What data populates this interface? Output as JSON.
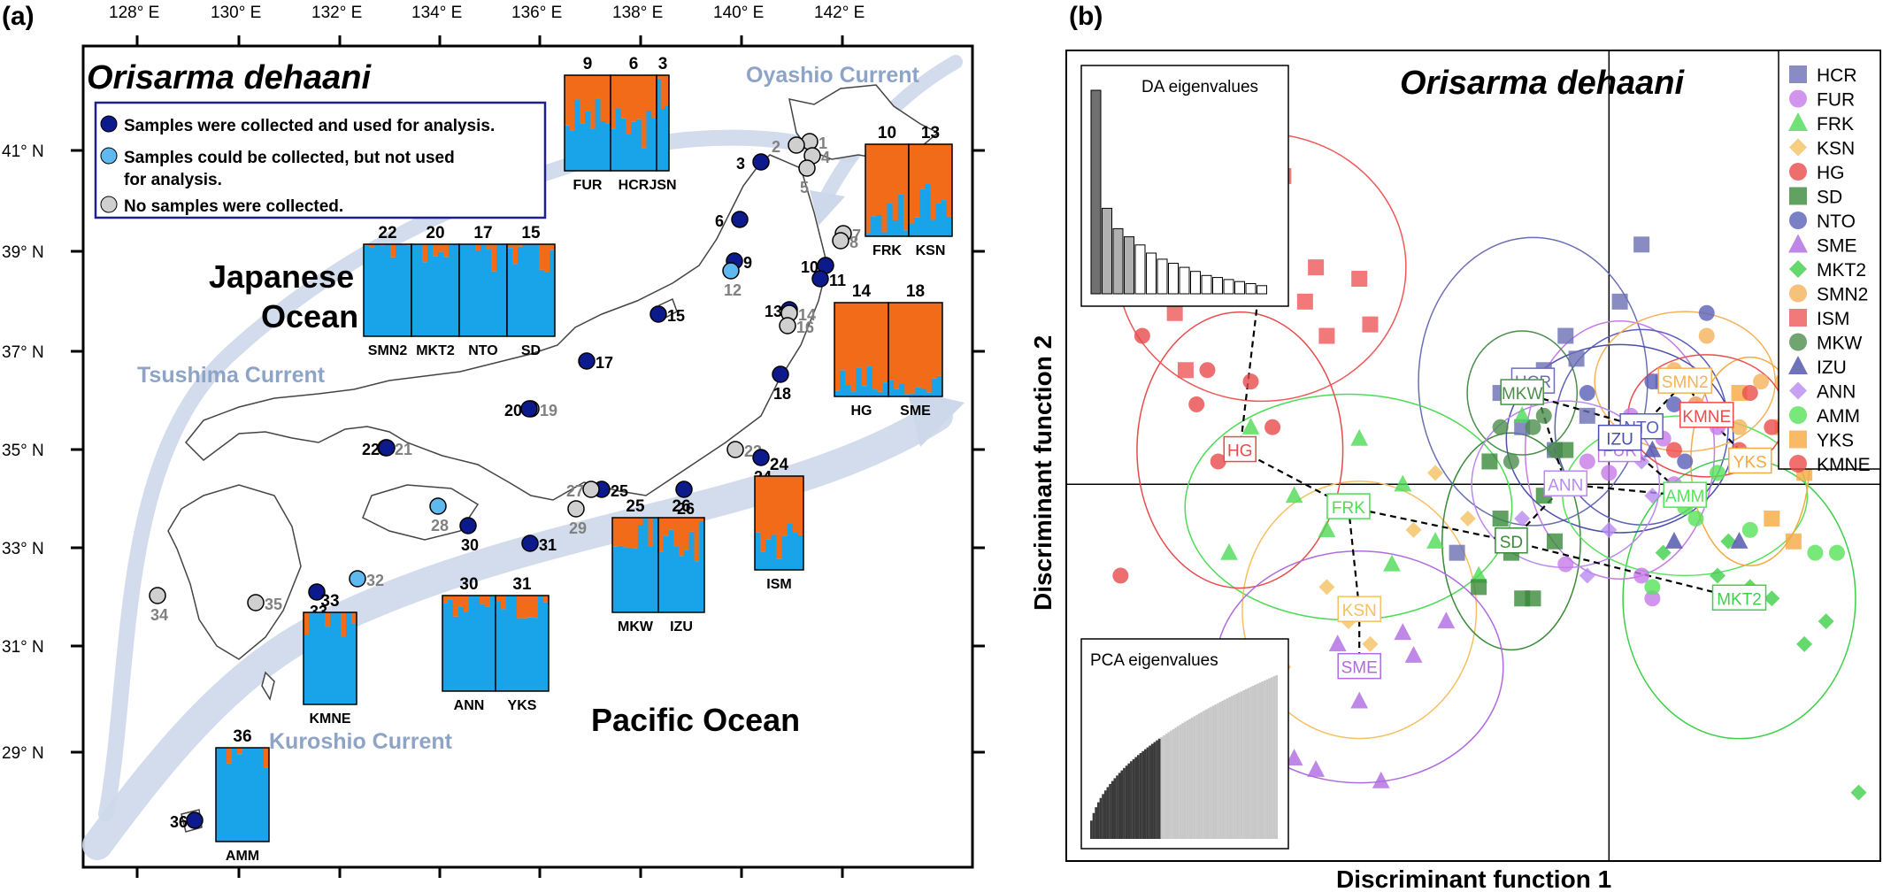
{
  "panels": {
    "a": "(a)",
    "b": "(b)"
  },
  "species": "Orisarma dehaani",
  "colors": {
    "ancestry_a": "#f26b18",
    "ancestry_b": "#19a3e8",
    "current": "#c5d3e8",
    "site_used": "#0d1a8c",
    "site_unused": "#5fb8ee",
    "site_none": "#cfcfcf"
  },
  "map": {
    "lon_ticks": [
      "128° E",
      "130° E",
      "132° E",
      "134° E",
      "136° E",
      "138° E",
      "140° E",
      "142° E"
    ],
    "lat_ticks": [
      "41° N",
      "39° N",
      "37° N",
      "35° N",
      "33° N",
      "31° N",
      "29° N"
    ],
    "legend": [
      {
        "text": "Samples were collected and used for analysis.",
        "kind": "used"
      },
      {
        "text": "Samples could be collected, but not used",
        "text2": "for analysis.",
        "kind": "unused"
      },
      {
        "text": "No samples were collected.",
        "kind": "none"
      }
    ],
    "seas": [
      {
        "name": "Japanese",
        "name2": "Ocean"
      },
      {
        "name": "Pacific Ocean"
      }
    ],
    "currents": [
      "Oyashio Current",
      "Tsushima Current",
      "Kuroshio Current"
    ],
    "sites": [
      {
        "n": "1",
        "kind": "none"
      },
      {
        "n": "2",
        "kind": "none"
      },
      {
        "n": "3",
        "kind": "used"
      },
      {
        "n": "4",
        "kind": "none"
      },
      {
        "n": "5",
        "kind": "none"
      },
      {
        "n": "6",
        "kind": "used"
      },
      {
        "n": "7",
        "kind": "none"
      },
      {
        "n": "8",
        "kind": "none"
      },
      {
        "n": "9",
        "kind": "used"
      },
      {
        "n": "10",
        "kind": "used"
      },
      {
        "n": "11",
        "kind": "used"
      },
      {
        "n": "12",
        "kind": "unused"
      },
      {
        "n": "13",
        "kind": "used"
      },
      {
        "n": "14",
        "kind": "none"
      },
      {
        "n": "15",
        "kind": "used"
      },
      {
        "n": "16",
        "kind": "none"
      },
      {
        "n": "17",
        "kind": "used"
      },
      {
        "n": "18",
        "kind": "used"
      },
      {
        "n": "19",
        "kind": "none"
      },
      {
        "n": "20",
        "kind": "used"
      },
      {
        "n": "21",
        "kind": "none"
      },
      {
        "n": "22",
        "kind": "used"
      },
      {
        "n": "23",
        "kind": "none"
      },
      {
        "n": "24",
        "kind": "used"
      },
      {
        "n": "25",
        "kind": "used"
      },
      {
        "n": "26",
        "kind": "used"
      },
      {
        "n": "27",
        "kind": "none"
      },
      {
        "n": "28",
        "kind": "unused"
      },
      {
        "n": "29",
        "kind": "none"
      },
      {
        "n": "30",
        "kind": "used"
      },
      {
        "n": "31",
        "kind": "used"
      },
      {
        "n": "32",
        "kind": "unused"
      },
      {
        "n": "33",
        "kind": "used"
      },
      {
        "n": "34",
        "kind": "none"
      },
      {
        "n": "35",
        "kind": "none"
      },
      {
        "n": "36",
        "kind": "used"
      }
    ],
    "structure_plots": [
      {
        "pops": [
          {
            "code": "FUR",
            "n": "9"
          },
          {
            "code": "HCR",
            "n": "6"
          },
          {
            "code": "JSN",
            "n": "3"
          }
        ]
      },
      {
        "pops": [
          {
            "code": "FRK",
            "n": "10"
          },
          {
            "code": "KSN",
            "n": "13"
          }
        ]
      },
      {
        "pops": [
          {
            "code": "SMN2",
            "n": "22"
          },
          {
            "code": "MKT2",
            "n": "20"
          },
          {
            "code": "NTO",
            "n": "17"
          },
          {
            "code": "SD",
            "n": "15"
          }
        ]
      },
      {
        "pops": [
          {
            "code": "HG",
            "n": "14"
          },
          {
            "code": "SME",
            "n": "18"
          }
        ]
      },
      {
        "pops": [
          {
            "code": "MKW",
            "n": "25"
          },
          {
            "code": "IZU",
            "n": "26"
          }
        ]
      },
      {
        "pops": [
          {
            "code": "ISM",
            "n": "24"
          }
        ]
      },
      {
        "pops": [
          {
            "code": "ANN",
            "n": "30"
          },
          {
            "code": "YKS",
            "n": "31"
          }
        ]
      },
      {
        "pops": [
          {
            "code": "KMNE",
            "n": "33"
          }
        ]
      },
      {
        "pops": [
          {
            "code": "AMM",
            "n": "36"
          }
        ]
      }
    ]
  },
  "chart_data": {
    "type": "scatter",
    "title": "Orisarma dehaani",
    "xlabel": "Discriminant function 1",
    "ylabel": "Discriminant function 2",
    "grid": false,
    "legend_position": "top-right",
    "inset_labels": [
      "DA eigenvalues",
      "PCA eigenvalues"
    ],
    "da_eigenvalues": [
      1.0,
      0.42,
      0.32,
      0.28,
      0.24,
      0.2,
      0.17,
      0.15,
      0.13,
      0.11,
      0.09,
      0.08,
      0.07,
      0.06,
      0.05,
      0.04
    ],
    "series": [
      {
        "name": "HCR",
        "shape": "square",
        "color": "#6a6fb4",
        "centroid": [
          -0.7,
          0.9
        ],
        "points": [
          [
            -0.6,
            1.0
          ],
          [
            -0.4,
            1.3
          ],
          [
            0.3,
            2.1
          ],
          [
            -1.0,
            0.8
          ],
          [
            -0.2,
            0.6
          ],
          [
            0.1,
            1.6
          ],
          [
            -0.8,
            0.5
          ],
          [
            0.5,
            0.9
          ],
          [
            -1.4,
            -0.6
          ],
          [
            -0.3,
            1.1
          ],
          [
            -0.5,
            0.3
          ]
        ]
      },
      {
        "name": "FUR",
        "shape": "circle",
        "color": "#c67ae8",
        "centroid": [
          0.1,
          0.3
        ],
        "points": [
          [
            0.2,
            0.6
          ],
          [
            -0.2,
            0.2
          ],
          [
            0.5,
            0.4
          ],
          [
            0.8,
            0.7
          ],
          [
            0.3,
            -0.8
          ],
          [
            0.0,
            0.1
          ],
          [
            -0.4,
            -0.7
          ],
          [
            0.6,
            0.0
          ],
          [
            1.0,
            0.5
          ],
          [
            0.4,
            -1.0
          ]
        ]
      },
      {
        "name": "FRK",
        "shape": "triangle",
        "color": "#4edb55",
        "centroid": [
          -2.4,
          -0.2
        ],
        "points": [
          [
            -3.3,
            0.5
          ],
          [
            -2.6,
            -0.4
          ],
          [
            -1.9,
            0.0
          ],
          [
            -1.2,
            -0.8
          ],
          [
            -2.0,
            -0.7
          ],
          [
            -3.5,
            -0.6
          ],
          [
            -2.9,
            -0.1
          ],
          [
            -2.3,
            0.4
          ],
          [
            -1.6,
            -0.5
          ],
          [
            -0.8,
            0.6
          ]
        ]
      },
      {
        "name": "KSN",
        "shape": "diamond",
        "color": "#f4c062",
        "centroid": [
          -2.3,
          -1.1
        ],
        "points": [
          [
            -2.6,
            -0.9
          ],
          [
            -1.8,
            -0.4
          ],
          [
            -2.2,
            -1.4
          ],
          [
            -3.0,
            -1.6
          ],
          [
            -1.3,
            -0.3
          ],
          [
            -2.4,
            -1.2
          ],
          [
            -1.6,
            0.1
          ]
        ]
      },
      {
        "name": "HG",
        "shape": "circle",
        "color": "#e84a4a",
        "centroid": [
          -3.4,
          0.3
        ],
        "points": [
          [
            -3.8,
            0.7
          ],
          [
            -3.3,
            0.9
          ],
          [
            -4.3,
            1.3
          ],
          [
            -3.6,
            0.2
          ],
          [
            -3.1,
            0.5
          ],
          [
            -4.5,
            -0.8
          ],
          [
            -3.7,
            1.0
          ]
        ]
      },
      {
        "name": "SD",
        "shape": "square",
        "color": "#3a8a3a",
        "centroid": [
          -0.9,
          -0.5
        ],
        "points": [
          [
            -1.0,
            -0.3
          ],
          [
            -0.8,
            -1.0
          ],
          [
            -0.6,
            -0.1
          ],
          [
            -1.2,
            -0.9
          ],
          [
            -0.4,
            0.3
          ],
          [
            -0.9,
            -0.6
          ],
          [
            -0.7,
            -1.0
          ],
          [
            -1.1,
            0.2
          ],
          [
            -0.5,
            -0.5
          ]
        ]
      },
      {
        "name": "NTO",
        "shape": "circle",
        "color": "#5a60b8",
        "centroid": [
          0.3,
          0.5
        ],
        "points": [
          [
            0.2,
            0.5
          ],
          [
            0.6,
            0.7
          ],
          [
            0.0,
            0.3
          ],
          [
            0.9,
            1.5
          ],
          [
            0.4,
            0.9
          ],
          [
            -0.2,
            0.8
          ],
          [
            0.7,
            0.2
          ]
        ]
      },
      {
        "name": "SME",
        "shape": "triangle",
        "color": "#b06ae0",
        "centroid": [
          -2.3,
          -1.6
        ],
        "points": [
          [
            -2.5,
            -1.4
          ],
          [
            -1.9,
            -1.3
          ],
          [
            -2.9,
            -2.4
          ],
          [
            -1.8,
            -1.5
          ],
          [
            -2.3,
            -1.9
          ],
          [
            -2.7,
            -2.5
          ],
          [
            -2.1,
            -2.6
          ],
          [
            -4.0,
            -1.6
          ],
          [
            -3.3,
            -2.3
          ],
          [
            -1.5,
            -1.2
          ]
        ]
      },
      {
        "name": "MKT2",
        "shape": "diamond",
        "color": "#3fcf4a",
        "centroid": [
          1.2,
          -1.0
        ],
        "points": [
          [
            1.5,
            -1.0
          ],
          [
            1.0,
            -0.8
          ],
          [
            1.8,
            -1.4
          ],
          [
            1.1,
            -0.5
          ],
          [
            2.0,
            -1.2
          ],
          [
            0.5,
            -0.6
          ],
          [
            2.3,
            -2.7
          ],
          [
            1.3,
            -0.9
          ]
        ]
      },
      {
        "name": "SMN2",
        "shape": "circle",
        "color": "#f4b35a",
        "centroid": [
          0.7,
          0.9
        ],
        "points": [
          [
            0.6,
            1.0
          ],
          [
            1.4,
            0.9
          ],
          [
            0.9,
            1.3
          ],
          [
            1.7,
            1.1
          ],
          [
            0.8,
            0.7
          ],
          [
            1.2,
            0.5
          ],
          [
            1.6,
            0.9
          ]
        ]
      },
      {
        "name": "ISM",
        "shape": "square",
        "color": "#ef5858",
        "centroid": [
          -3.2,
          1.9
        ],
        "points": [
          [
            -3.0,
            2.7
          ],
          [
            -2.7,
            1.9
          ],
          [
            -2.3,
            1.8
          ],
          [
            -3.7,
            1.9
          ],
          [
            -4.0,
            1.5
          ],
          [
            -4.5,
            3.2
          ],
          [
            -2.6,
            1.3
          ],
          [
            -3.9,
            1.0
          ],
          [
            -2.2,
            1.4
          ],
          [
            -2.8,
            1.6
          ],
          [
            -3.3,
            2.3
          ]
        ]
      },
      {
        "name": "MKW",
        "shape": "circle",
        "color": "#4c8d4c",
        "centroid": [
          -0.8,
          0.8
        ],
        "points": [
          [
            -0.8,
            0.8
          ],
          [
            -0.7,
            0.5
          ],
          [
            -0.5,
            0.3
          ],
          [
            -1.0,
            0.5
          ],
          [
            -0.9,
            0.2
          ],
          [
            -0.6,
            0.6
          ]
        ]
      },
      {
        "name": "IZU",
        "shape": "triangle",
        "color": "#4a4faa",
        "centroid": [
          0.1,
          0.4
        ],
        "points": [
          [
            0.1,
            0.4
          ],
          [
            0.4,
            0.3
          ],
          [
            1.2,
            -0.5
          ],
          [
            0.6,
            -0.5
          ],
          [
            -0.4,
            0.0
          ]
        ]
      },
      {
        "name": "ANN",
        "shape": "diamond",
        "color": "#b98af0",
        "centroid": [
          -0.4,
          0.0
        ],
        "points": [
          [
            -0.4,
            0.0
          ],
          [
            0.0,
            -0.4
          ],
          [
            0.4,
            -0.1
          ],
          [
            -0.8,
            -0.3
          ],
          [
            0.3,
            0.2
          ],
          [
            -0.2,
            -0.8
          ]
        ]
      },
      {
        "name": "AMM",
        "shape": "circle",
        "color": "#56e25a",
        "centroid": [
          0.7,
          -0.1
        ],
        "points": [
          [
            0.8,
            -0.3
          ],
          [
            1.3,
            -0.4
          ],
          [
            1.9,
            -0.6
          ],
          [
            0.4,
            -0.9
          ],
          [
            1.0,
            0.1
          ],
          [
            0.7,
            -0.2
          ],
          [
            2.1,
            -0.6
          ]
        ]
      },
      {
        "name": "YKS",
        "shape": "square",
        "color": "#f7a942",
        "centroid": [
          1.3,
          0.2
        ],
        "points": [
          [
            1.4,
            0.2
          ],
          [
            1.5,
            -0.3
          ],
          [
            1.8,
            0.1
          ],
          [
            1.2,
            0.8
          ],
          [
            1.6,
            0.5
          ],
          [
            1.7,
            -0.5
          ]
        ]
      },
      {
        "name": "KMNE",
        "shape": "circle",
        "color": "#ec4c4c",
        "centroid": [
          0.9,
          0.6
        ],
        "points": [
          [
            0.9,
            0.6
          ],
          [
            1.2,
            0.3
          ],
          [
            1.5,
            0.5
          ],
          [
            0.6,
            0.3
          ],
          [
            1.3,
            0.8
          ]
        ]
      }
    ],
    "centroid_links": [
      [
        "ISM",
        "HG"
      ],
      [
        "HG",
        "FRK"
      ],
      [
        "FRK",
        "KSN"
      ],
      [
        "KSN",
        "SME"
      ],
      [
        "FRK",
        "SD"
      ],
      [
        "SD",
        "ANN"
      ],
      [
        "SD",
        "MKT2"
      ],
      [
        "ANN",
        "HCR"
      ],
      [
        "HCR",
        "MKW"
      ],
      [
        "MKW",
        "NTO"
      ],
      [
        "NTO",
        "SMN2"
      ],
      [
        "SMN2",
        "KMNE"
      ],
      [
        "KMNE",
        "YKS"
      ],
      [
        "ANN",
        "AMM"
      ],
      [
        "AMM",
        "IZU"
      ],
      [
        "IZU",
        "FUR"
      ]
    ],
    "xlim": [
      -5,
      2.5
    ],
    "ylim": [
      -3.3,
      3.8
    ]
  }
}
